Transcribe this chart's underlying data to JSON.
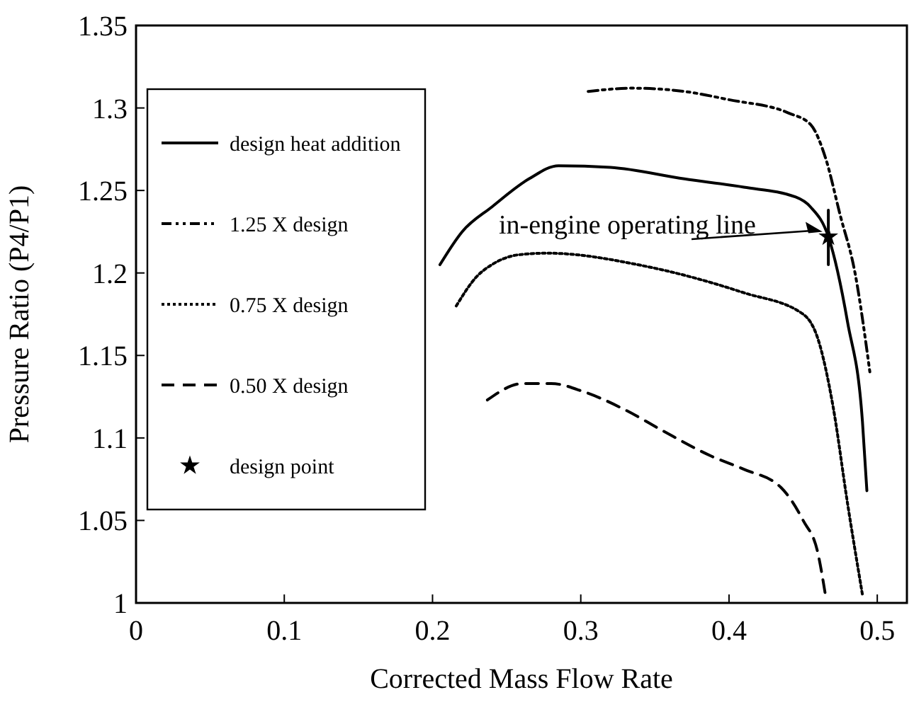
{
  "chart_data": {
    "type": "line",
    "xlabel": "Corrected Mass Flow Rate",
    "ylabel": "Pressure Ratio (P4/P1)",
    "xlim": [
      0,
      0.52
    ],
    "xticks": [
      {
        "value": 0,
        "label": "0"
      },
      0.1,
      0.2,
      0.3,
      0.4,
      0.5
    ],
    "ylim": [
      1,
      1.35
    ],
    "yticks": [
      {
        "value": 1,
        "label": "1"
      },
      1.05,
      1.1,
      1.15,
      1.2,
      1.25,
      1.3,
      1.35
    ],
    "grid": false,
    "legend": "left",
    "series": [
      {
        "name": "design heat addition",
        "color": "#000000",
        "line_style": "solid",
        "x": [
          0.205,
          0.22,
          0.24,
          0.265,
          0.285,
          0.32,
          0.37,
          0.41,
          0.445,
          0.455,
          0.467,
          0.48,
          0.49,
          0.493
        ],
        "values": [
          1.205,
          1.225,
          1.24,
          1.257,
          1.265,
          1.264,
          1.257,
          1.252,
          1.246,
          1.24,
          1.222,
          1.17,
          1.11,
          1.068
        ]
      },
      {
        "name": "1.25 X design",
        "color": "#000000",
        "line_style": "dashdot",
        "x": [
          0.305,
          0.335,
          0.37,
          0.4,
          0.44,
          0.455,
          0.465,
          0.475,
          0.485,
          0.495
        ],
        "values": [
          1.31,
          1.312,
          1.31,
          1.305,
          1.297,
          1.29,
          1.27,
          1.235,
          1.2,
          1.14
        ]
      },
      {
        "name": "0.75 X design",
        "color": "#000000",
        "line_style": "dotted",
        "x": [
          0.216,
          0.23,
          0.24,
          0.258,
          0.277,
          0.344,
          0.41,
          0.45,
          0.46,
          0.47,
          0.48,
          0.49
        ],
        "values": [
          1.18,
          1.198,
          1.205,
          1.211,
          1.212,
          1.204,
          1.188,
          1.175,
          1.16,
          1.12,
          1.06,
          1.005
        ]
      },
      {
        "name": "0.50 X design",
        "color": "#000000",
        "line_style": "dashed",
        "x": [
          0.237,
          0.261,
          0.28,
          0.302,
          0.33,
          0.356,
          0.388,
          0.41,
          0.435,
          0.45,
          0.46,
          0.465
        ],
        "values": [
          1.123,
          1.133,
          1.133,
          1.128,
          1.117,
          1.104,
          1.089,
          1.081,
          1.07,
          1.05,
          1.03,
          1.005
        ]
      },
      {
        "type": "line",
        "line_style": "solid",
        "color": "#000000",
        "x": [
          0.467,
          0.467
        ],
        "values": [
          1.205,
          1.238
        ]
      },
      {
        "name": "design point",
        "type": "scatter",
        "marker": "star",
        "color": "#000000",
        "x": [
          0.467
        ],
        "values": [
          1.222
        ]
      }
    ],
    "annotations": [
      {
        "text": "in-engine operating line",
        "x": 0.465,
        "y": 1.225
      }
    ]
  }
}
